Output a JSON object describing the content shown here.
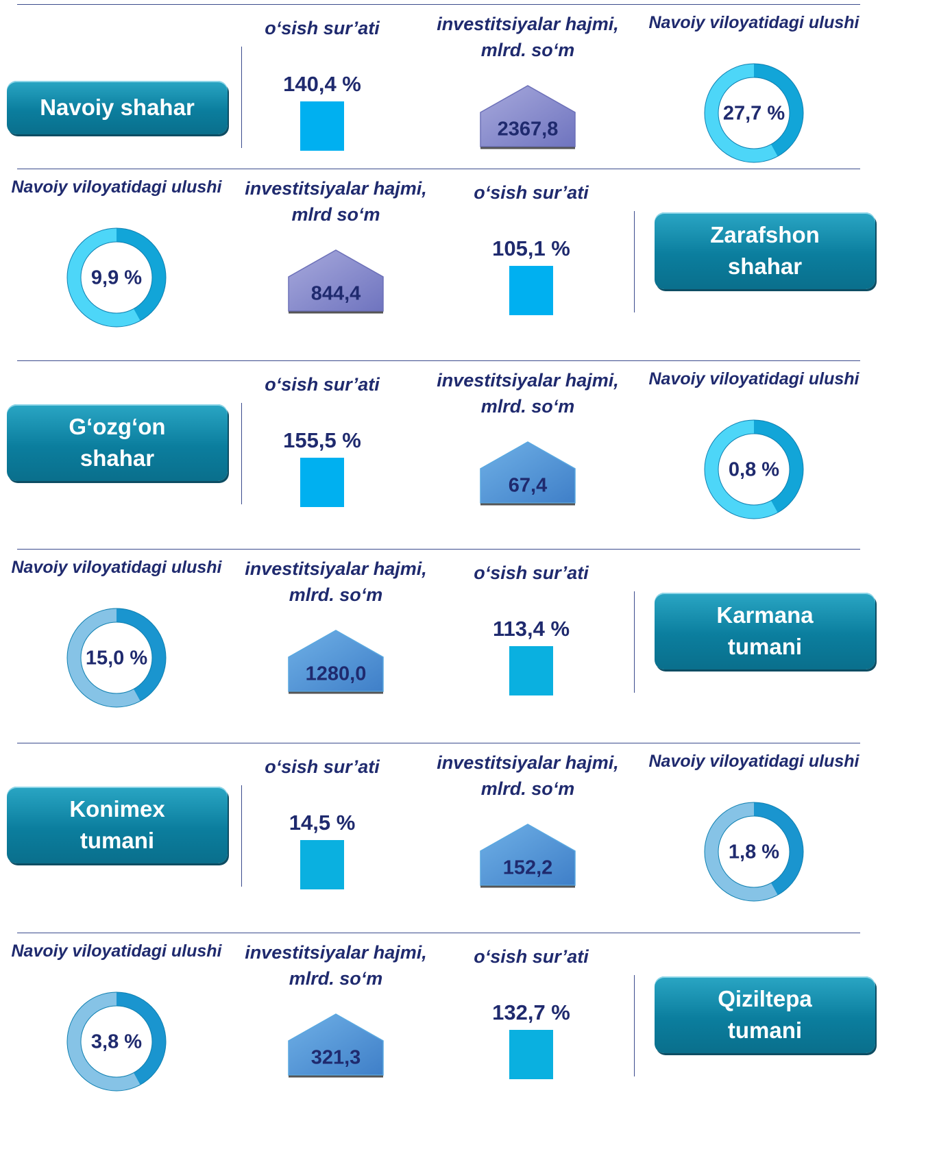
{
  "rows": [
    {
      "name": [
        "Navoiy shahar"
      ],
      "growth_label": "o‘sish sur’ati",
      "growth": "140,4 %",
      "invest_label": [
        "investitsiyalar hajmi,",
        "mlrd. so‘m"
      ],
      "invest": "2367,8",
      "share_label": "Navoiy viloyatidagi ulushi",
      "share": "27,7 %"
    },
    {
      "name": [
        "Zarafshon",
        "shahar"
      ],
      "growth_label": "o‘sish sur’ati",
      "growth": "105,1 %",
      "invest_label": [
        "investitsiyalar hajmi,",
        "mlrd so‘m"
      ],
      "invest": "844,4",
      "share_label": "Navoiy viloyatidagi ulushi",
      "share": "9,9 %"
    },
    {
      "name": [
        "G‘ozg‘on",
        "shahar"
      ],
      "growth_label": "o‘sish sur’ati",
      "growth": "155,5 %",
      "invest_label": [
        "investitsiyalar hajmi,",
        "mlrd. so‘m"
      ],
      "invest": "67,4",
      "share_label": "Navoiy viloyatidagi ulushi",
      "share": "0,8 %"
    },
    {
      "name": [
        "Karmana",
        "tumani"
      ],
      "growth_label": "o‘sish sur’ati",
      "growth": "113,4 %",
      "invest_label": [
        "investitsiyalar hajmi,",
        "mlrd. so‘m"
      ],
      "invest": "1280,0",
      "share_label": "Navoiy viloyatidagi ulushi",
      "share": "15,0 %"
    },
    {
      "name": [
        "Konimex",
        "tumani"
      ],
      "growth_label": "o‘sish sur’ati",
      "growth": "14,5 %",
      "invest_label": [
        "investitsiyalar hajmi,",
        "mlrd. so‘m"
      ],
      "invest": "152,2",
      "share_label": "Navoiy viloyatidagi ulushi",
      "share": "1,8 %"
    },
    {
      "name": [
        "Qiziltepa",
        "tumani"
      ],
      "growth_label": "o‘sish sur’ati",
      "growth": "132,7 %",
      "invest_label": [
        "investitsiyalar hajmi,",
        "mlrd. so‘m"
      ],
      "invest": "321,3",
      "share_label": "Navoiy viloyatidagi ulushi",
      "share": "3,8 %"
    }
  ]
}
